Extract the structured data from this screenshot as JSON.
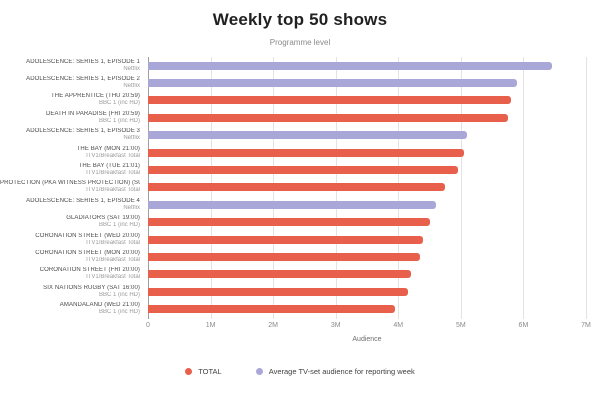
{
  "header": {
    "title": "Weekly top 50 shows",
    "subtitle": "Programme level"
  },
  "chart_data": {
    "type": "bar",
    "orientation": "horizontal",
    "title": "Weekly top 50 shows",
    "subtitle": "Programme level",
    "xlabel": "Audience",
    "xlim": [
      0,
      7000000
    ],
    "grid": true,
    "legend_position": "bottom",
    "ticks": [
      "0",
      "1M",
      "2M",
      "3M",
      "4M",
      "5M",
      "6M",
      "7M"
    ],
    "colors": {
      "total": "#e8604c",
      "avg": "#a9a7d8"
    },
    "legend": [
      {
        "key": "total",
        "label": "TOTAL",
        "color": "#e8604c"
      },
      {
        "key": "avg",
        "label": "Average TV-set audience for reporting week",
        "color": "#a9a7d8"
      }
    ],
    "rows": [
      {
        "name": "ADOLESCENCE: SERIES 1, EPISODE 1",
        "channel": "Netflix",
        "series": "avg",
        "value": 6450000
      },
      {
        "name": "ADOLESCENCE: SERIES 1, EPISODE 2",
        "channel": "Netflix",
        "series": "avg",
        "value": 5900000
      },
      {
        "name": "THE APPRENTICE (THU 20:59)",
        "channel": "BBC 1 (inc HD)",
        "series": "total",
        "value": 5800000
      },
      {
        "name": "DEATH IN PARADISE (FRI 20:59)",
        "channel": "BBC 1 (inc HD)",
        "series": "total",
        "value": 5750000
      },
      {
        "name": "ADOLESCENCE: SERIES 1, EPISODE 3",
        "channel": "Netflix",
        "series": "avg",
        "value": 5100000
      },
      {
        "name": "THE BAY (MON 21:00)",
        "channel": "ITV1/Breakfast Total",
        "series": "total",
        "value": 5050000
      },
      {
        "name": "THE BAY (TUE 21:01)",
        "channel": "ITV1/Breakfast Total",
        "series": "total",
        "value": 4950000
      },
      {
        "name": "PROTECTION (PKA WITNESS PROTECTION) (SUN 21:00)",
        "channel": "ITV1/Breakfast Total",
        "series": "total",
        "value": 4750000
      },
      {
        "name": "ADOLESCENCE: SERIES 1, EPISODE 4",
        "channel": "Netflix",
        "series": "avg",
        "value": 4600000
      },
      {
        "name": "GLADIATORS (SAT 19:00)",
        "channel": "BBC 1 (inc HD)",
        "series": "total",
        "value": 4500000
      },
      {
        "name": "CORONATION STREET (WED 20:00)",
        "channel": "ITV1/Breakfast Total",
        "series": "total",
        "value": 4400000
      },
      {
        "name": "CORONATION STREET (MON 20:00)",
        "channel": "ITV1/Breakfast Total",
        "series": "total",
        "value": 4350000
      },
      {
        "name": "CORONATION STREET (FRI 20:00)",
        "channel": "ITV1/Breakfast Total",
        "series": "total",
        "value": 4200000
      },
      {
        "name": "SIX NATIONS RUGBY (SAT 16:00)",
        "channel": "BBC 1 (inc HD)",
        "series": "total",
        "value": 4150000
      },
      {
        "name": "AMANDALAND (WED 21:00)",
        "channel": "BBC 1 (inc HD)",
        "series": "total",
        "value": 3950000
      }
    ]
  }
}
